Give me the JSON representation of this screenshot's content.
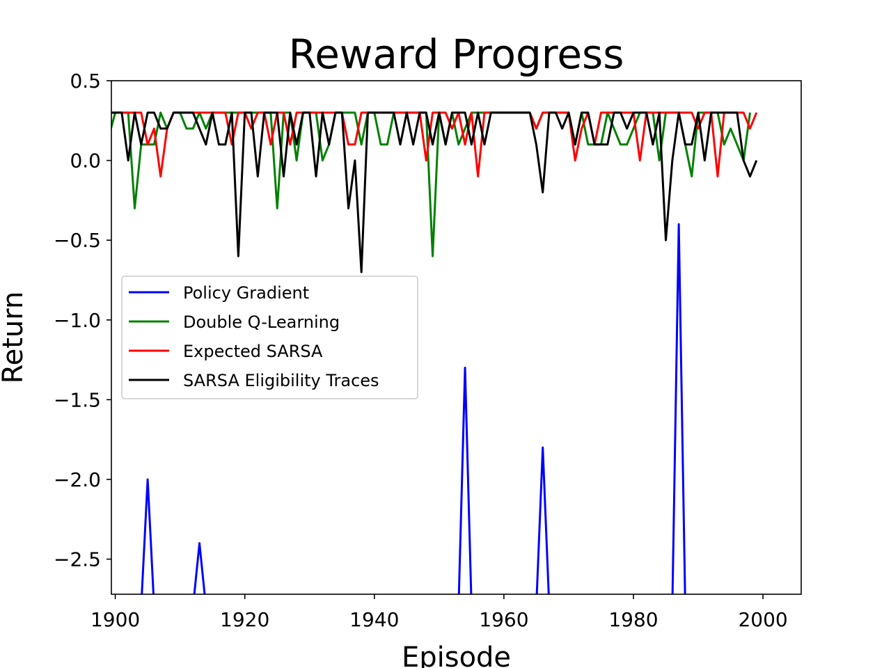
{
  "chart_data": {
    "type": "line",
    "title": "Reward Progress",
    "xlabel": "Episode",
    "ylabel": "Return",
    "xlim": [
      1899.4,
      2005.9
    ],
    "ylim": [
      -2.72,
      0.5
    ],
    "xticks": [
      1900,
      1920,
      1940,
      1960,
      1980,
      2000
    ],
    "yticks": [
      0.5,
      0.0,
      -0.5,
      -1.0,
      -1.5,
      -2.0,
      -2.5
    ],
    "xtick_labels": [
      "1900",
      "1920",
      "1940",
      "1960",
      "1980",
      "2000"
    ],
    "ytick_labels": [
      "0.5",
      "0.0",
      "−0.5",
      "−1.0",
      "−1.5",
      "−2.0",
      "−2.5"
    ],
    "grid": false,
    "legend_position": "center-left",
    "x_start": 1899,
    "series": [
      {
        "name": "Policy Gradient",
        "color": "#0000ff",
        "y": [
          -2.8,
          -2.8,
          -2.8,
          -2.8,
          -2.8,
          -2.8,
          -2.0,
          -2.8,
          -2.8,
          -2.8,
          -2.8,
          -2.8,
          -2.8,
          -2.8,
          -2.4,
          -2.8,
          -2.8,
          -2.8,
          -2.8,
          -2.8,
          -2.8,
          -2.8,
          -2.8,
          -2.8,
          -2.8,
          -2.8,
          -2.8,
          -2.8,
          -2.8,
          -2.8,
          -2.8,
          -2.8,
          -2.8,
          -2.8,
          -2.8,
          -2.8,
          -2.8,
          -2.8,
          -2.8,
          -2.8,
          -2.8,
          -2.8,
          -2.8,
          -2.8,
          -2.8,
          -2.8,
          -2.8,
          -2.8,
          -2.8,
          -2.8,
          -2.8,
          -2.8,
          -2.8,
          -2.8,
          -2.8,
          -1.3,
          -2.8,
          -2.8,
          -2.8,
          -2.8,
          -2.8,
          -2.8,
          -2.8,
          -2.8,
          -2.8,
          -2.8,
          -2.8,
          -1.8,
          -2.8,
          -2.8,
          -2.8,
          -2.8,
          -2.8,
          -2.8,
          -2.8,
          -2.8,
          -2.8,
          -2.8,
          -2.8,
          -2.8,
          -2.8,
          -2.8,
          -2.8,
          -2.8,
          -2.8,
          -2.8,
          -2.8,
          -2.8,
          -0.4,
          -2.8,
          -2.8,
          -2.8,
          -2.8,
          -2.8,
          -2.8,
          -2.8,
          -2.8,
          -2.8,
          -2.8,
          -2.8,
          -2.8
        ]
      },
      {
        "name": "Double Q-Learning",
        "color": "#008000",
        "y": [
          0.15,
          0.3,
          0.3,
          0.3,
          -0.3,
          0.1,
          0.1,
          0.1,
          0.3,
          0.2,
          0.3,
          0.3,
          0.2,
          0.2,
          0.3,
          0.2,
          0.3,
          0.3,
          0.3,
          0.3,
          0.3,
          0.3,
          0.3,
          0.3,
          0.3,
          0.3,
          -0.3,
          0.3,
          0.3,
          0.0,
          0.3,
          0.3,
          0.3,
          0.0,
          0.1,
          0.3,
          0.3,
          0.3,
          0.3,
          0.1,
          0.3,
          0.3,
          0.1,
          0.1,
          0.3,
          0.3,
          0.3,
          0.3,
          0.3,
          0.3,
          -0.6,
          0.3,
          0.1,
          0.3,
          0.1,
          0.2,
          0.3,
          0.3,
          0.3,
          0.3,
          0.3,
          0.3,
          0.3,
          0.3,
          0.3,
          0.3,
          0.2,
          0.3,
          0.3,
          0.3,
          0.3,
          0.3,
          0.1,
          0.3,
          0.1,
          0.1,
          0.1,
          0.3,
          0.2,
          0.1,
          0.1,
          0.2,
          0.3,
          0.3,
          0.3,
          0.0,
          0.3,
          0.3,
          0.3,
          0.1,
          -0.1,
          0.3,
          0.3,
          0.3,
          0.3,
          0.1,
          0.2,
          0.1,
          0.0,
          0.3
        ]
      },
      {
        "name": "Expected SARSA",
        "color": "#ff0000",
        "y": [
          0.3,
          0.3,
          0.3,
          0.3,
          0.3,
          0.3,
          0.1,
          0.2,
          -0.1,
          0.2,
          0.3,
          0.3,
          0.3,
          0.3,
          0.3,
          0.3,
          0.3,
          0.3,
          0.3,
          0.1,
          0.3,
          0.3,
          0.2,
          0.3,
          0.3,
          0.1,
          0.3,
          0.3,
          0.1,
          0.3,
          0.3,
          0.3,
          0.3,
          0.3,
          0.3,
          0.3,
          0.3,
          0.1,
          0.1,
          0.3,
          0.3,
          0.3,
          0.3,
          0.3,
          0.3,
          0.3,
          0.3,
          0.3,
          0.3,
          0.0,
          0.3,
          0.3,
          0.3,
          0.2,
          0.3,
          0.1,
          0.3,
          -0.1,
          0.3,
          0.3,
          0.3,
          0.3,
          0.3,
          0.3,
          0.3,
          0.3,
          0.2,
          0.3,
          0.3,
          0.3,
          0.3,
          0.3,
          0.0,
          0.2,
          0.3,
          0.1,
          0.3,
          0.3,
          0.3,
          0.3,
          0.3,
          0.3,
          0.0,
          0.3,
          0.3,
          0.3,
          0.3,
          0.3,
          0.3,
          0.3,
          0.3,
          0.2,
          0.3,
          0.3,
          -0.1,
          0.3,
          0.3,
          0.3,
          0.3,
          0.2,
          0.3
        ]
      },
      {
        "name": "SARSA Eligibility Traces",
        "color": "#000000",
        "y": [
          0.3,
          0.3,
          0.3,
          0.0,
          0.3,
          0.1,
          0.3,
          0.3,
          0.2,
          0.2,
          0.3,
          0.3,
          0.3,
          0.3,
          0.2,
          0.1,
          0.3,
          0.1,
          0.1,
          0.3,
          -0.6,
          0.3,
          0.3,
          -0.1,
          0.3,
          0.3,
          0.3,
          -0.1,
          0.3,
          0.1,
          0.3,
          0.3,
          -0.1,
          0.3,
          0.1,
          0.3,
          0.3,
          -0.3,
          0.0,
          -0.7,
          0.3,
          0.3,
          0.3,
          0.3,
          0.3,
          0.1,
          0.3,
          0.1,
          0.3,
          0.3,
          0.1,
          0.3,
          0.1,
          0.3,
          0.3,
          0.3,
          0.1,
          0.3,
          0.1,
          0.3,
          0.3,
          0.3,
          0.3,
          0.3,
          0.3,
          0.3,
          0.1,
          -0.2,
          0.3,
          0.3,
          0.2,
          0.3,
          0.1,
          0.3,
          0.3,
          0.1,
          0.1,
          0.1,
          0.3,
          0.3,
          0.2,
          0.3,
          0.3,
          0.3,
          0.1,
          0.3,
          -0.5,
          0.0,
          0.3,
          0.1,
          0.1,
          0.3,
          0.0,
          0.3,
          0.3,
          0.3,
          0.3,
          0.3,
          0.0,
          -0.1,
          0.0
        ]
      }
    ]
  }
}
